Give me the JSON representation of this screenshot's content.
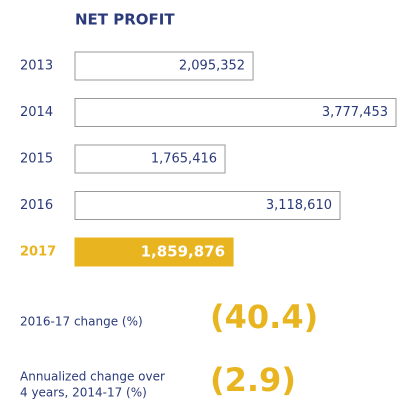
{
  "chart_data": {
    "type": "hbar",
    "title": "NET PROFIT",
    "categories": [
      "2013",
      "2014",
      "2015",
      "2016",
      "2017"
    ],
    "values": [
      2095352,
      3777453,
      1765416,
      3118610,
      1859876
    ],
    "value_labels": [
      "2,095,352",
      "3,777,453",
      "1,765,416",
      "3,118,610",
      "1,859,876"
    ],
    "colors": [
      "#ffffff",
      "#ffffff",
      "#ffffff",
      "#ffffff",
      "#e8b520"
    ],
    "annotations": [
      {
        "label": [
          "2016-17 change (%)"
        ],
        "value": "(40.4)"
      },
      {
        "label": [
          "Annualized change over",
          "4 years, 2014-17 (%)"
        ],
        "value": "(2.9)"
      }
    ]
  }
}
